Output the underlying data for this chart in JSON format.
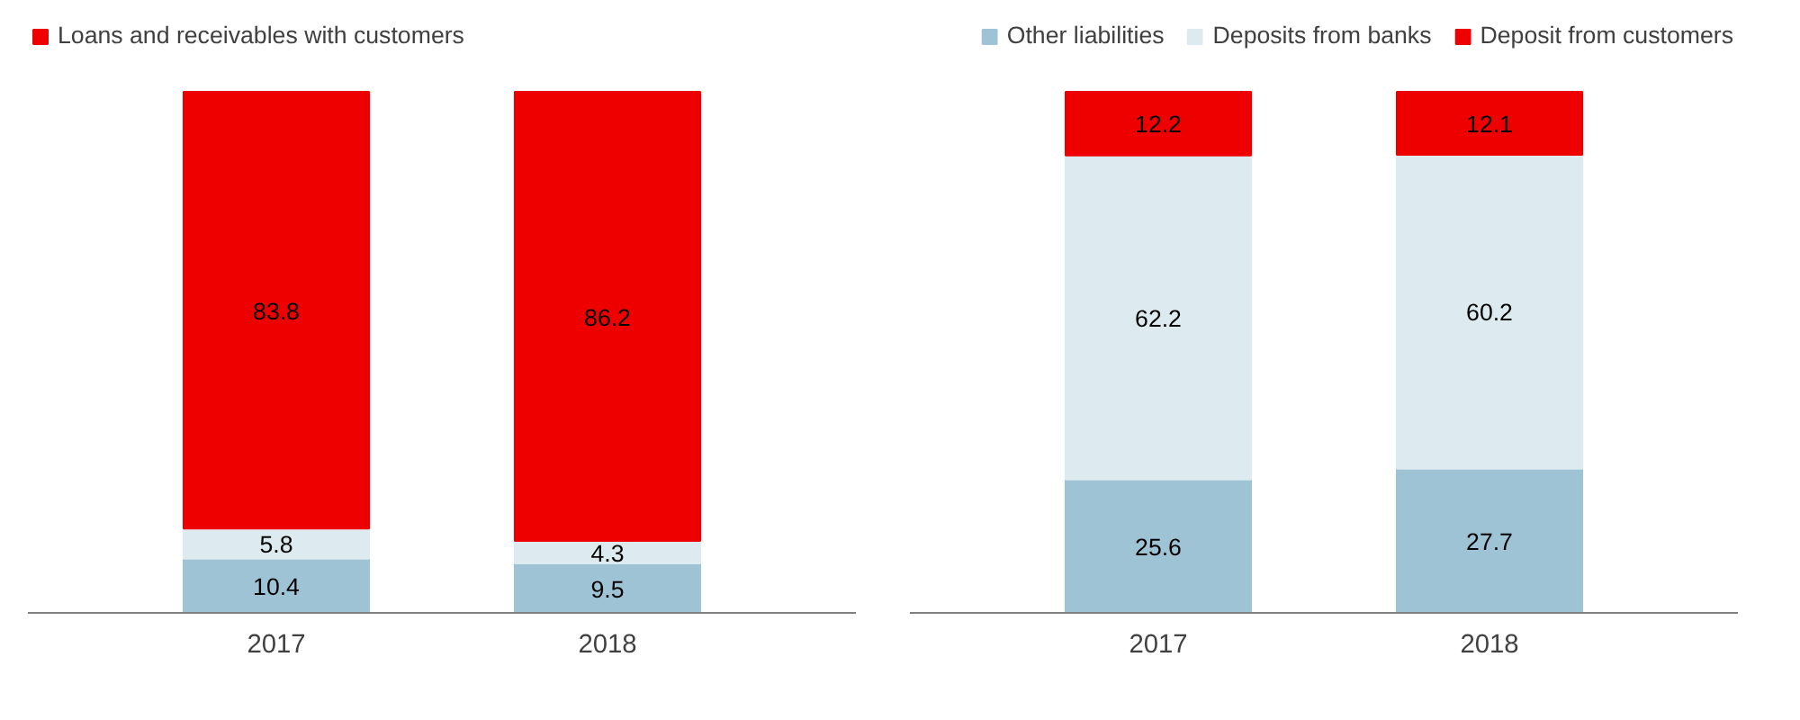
{
  "chart_data": [
    {
      "type": "bar",
      "stacked": true,
      "data_labels": true,
      "legend": "top left",
      "grid": false,
      "categories": [
        "2017",
        "2018"
      ],
      "series": [
        {
          "color": "#9dc3d4",
          "values": [
            10.4,
            9.5
          ]
        },
        {
          "color": "#ddebf0",
          "values": [
            5.8,
            4.3
          ]
        },
        {
          "name": "Loans and receivables with customers",
          "color": "#ee0000",
          "values": [
            83.8,
            86.2
          ]
        }
      ]
    },
    {
      "type": "bar",
      "stacked": true,
      "data_labels": true,
      "legend": "top right",
      "grid": false,
      "categories": [
        "2017",
        "2018"
      ],
      "series": [
        {
          "name": "Other liabilities",
          "color": "#9dc3d4",
          "values": [
            25.6,
            27.7
          ]
        },
        {
          "name": "Deposits from banks",
          "color": "#ddebf0",
          "values": [
            62.2,
            60.2
          ]
        },
        {
          "name": "Deposit from customers",
          "color": "#ee0000",
          "values": [
            12.2,
            12.1
          ]
        }
      ]
    }
  ]
}
